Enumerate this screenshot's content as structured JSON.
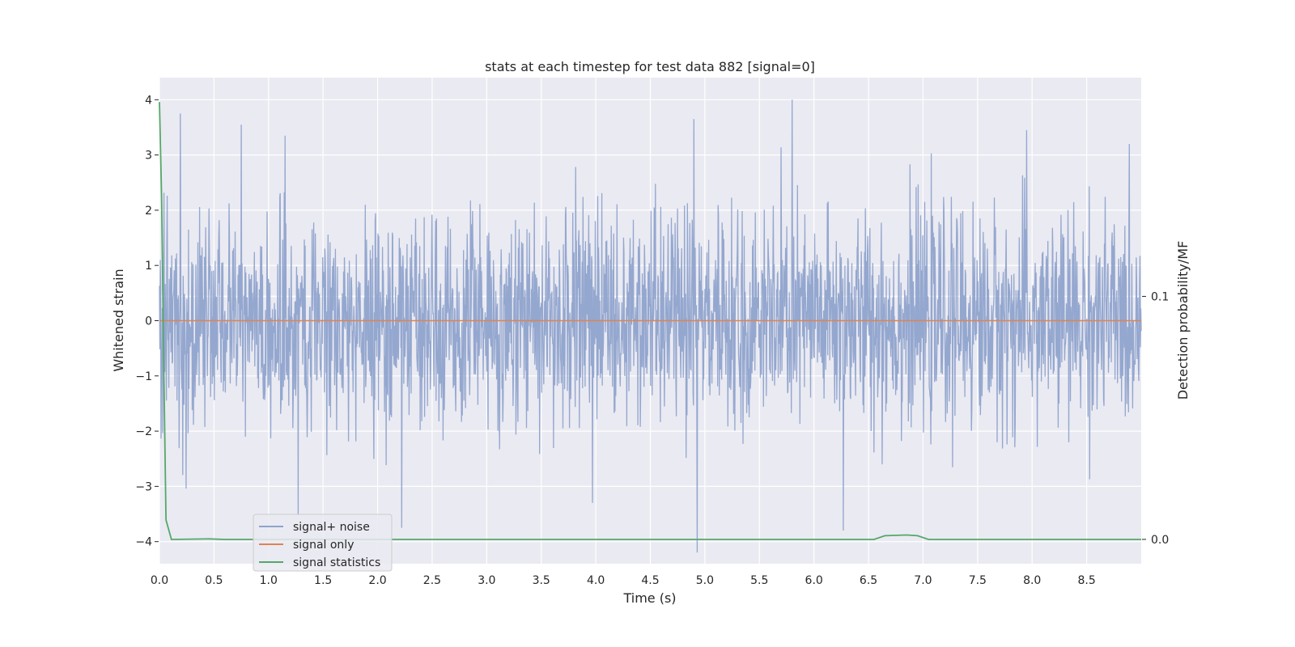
{
  "chart_data": {
    "type": "line",
    "title": "stats at each timestep for test data 882 [signal=0]",
    "xlabel": "Time (s)",
    "ylabel": "Whitened strain",
    "ylabel_right": "Detection probability/MF",
    "xlim": [
      0.0,
      9.0
    ],
    "ylim": [
      -4.4,
      4.4
    ],
    "ylim_right": [
      -0.01,
      0.19
    ],
    "x_ticks": [
      "0.0",
      "0.5",
      "1.0",
      "1.5",
      "2.0",
      "2.5",
      "3.0",
      "3.5",
      "4.0",
      "4.5",
      "5.0",
      "5.5",
      "6.0",
      "6.5",
      "7.0",
      "7.5",
      "8.0",
      "8.5"
    ],
    "y_ticks": [
      "4",
      "3",
      "2",
      "1",
      "0",
      "−1",
      "−2",
      "−3",
      "−4"
    ],
    "y_ticks_right": [
      "0.1",
      "0.0"
    ],
    "grid": true,
    "legend_position": "lower-left",
    "series": [
      {
        "name": "signal+ noise",
        "color": "#8fa3cc",
        "kind": "noise",
        "std": 0.95,
        "tallest_peaks": [
          {
            "x": 0.19,
            "y": 3.75
          },
          {
            "x": 0.75,
            "y": 3.55
          },
          {
            "x": 1.15,
            "y": 3.35
          },
          {
            "x": 4.9,
            "y": 3.65
          },
          {
            "x": 5.8,
            "y": 4.0
          },
          {
            "x": 7.95,
            "y": 3.45
          }
        ],
        "deepest_troughs": [
          {
            "x": 1.27,
            "y": -3.5
          },
          {
            "x": 2.22,
            "y": -3.75
          },
          {
            "x": 4.93,
            "y": -4.2
          },
          {
            "x": 6.27,
            "y": -3.8
          },
          {
            "x": 3.97,
            "y": -3.3
          }
        ]
      },
      {
        "name": "signal only",
        "color": "#dd8452",
        "x": [
          0.0,
          9.0
        ],
        "y": [
          0.0,
          0.0
        ]
      },
      {
        "name": "signal statistics",
        "color": "#55a868",
        "axis": "right",
        "x": [
          0.0,
          0.02,
          0.04,
          0.06,
          0.11,
          0.45,
          0.6,
          6.55,
          6.65,
          6.85,
          6.95,
          7.05,
          9.0
        ],
        "y": [
          0.18,
          0.14,
          0.07,
          0.008,
          0.0,
          0.0002,
          0.0,
          0.0,
          0.0015,
          0.0018,
          0.0015,
          0.0,
          0.0
        ]
      }
    ]
  }
}
